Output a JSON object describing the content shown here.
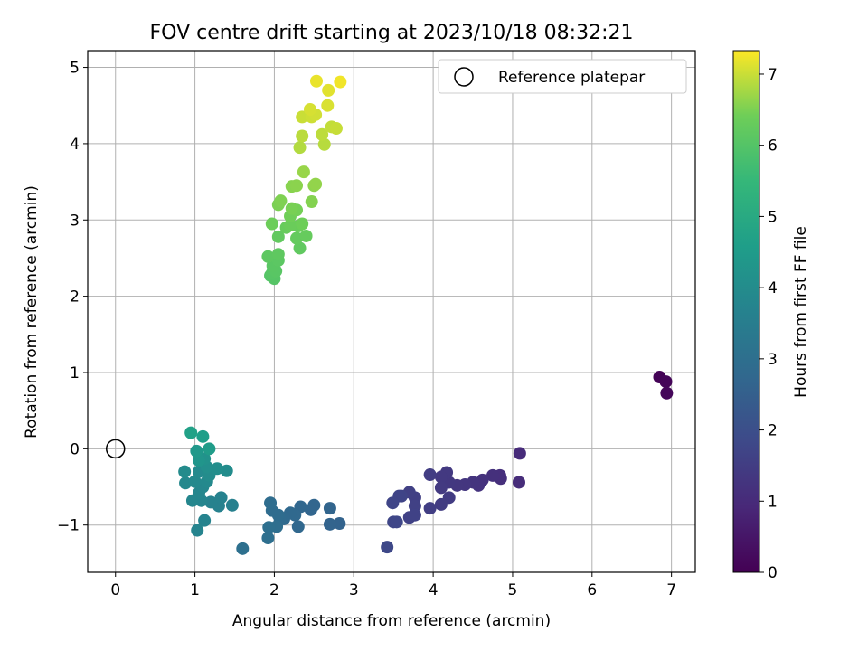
{
  "chart_data": {
    "type": "scatter",
    "title": "FOV centre drift starting at 2023/10/18 08:32:21",
    "xlabel": "Angular distance from reference (arcmin)",
    "ylabel": "Rotation from reference (arcmin)",
    "xlim": [
      -0.35,
      7.3
    ],
    "ylim": [
      -1.62,
      5.22
    ],
    "xticks": [
      0,
      1,
      2,
      3,
      4,
      5,
      6,
      7
    ],
    "yticks": [
      -1,
      0,
      1,
      2,
      3,
      4,
      5
    ],
    "grid": true,
    "legend": {
      "position": "upper right",
      "entries": [
        "Reference platepar"
      ]
    },
    "colorbar": {
      "label": "Hours from first FF file",
      "colormap": "viridis",
      "range": [
        0,
        7.33
      ],
      "ticks": [
        0,
        1,
        2,
        3,
        4,
        5,
        6,
        7
      ]
    },
    "reference_point": {
      "x": 0,
      "y": 0
    },
    "series": [
      {
        "points": [
          {
            "x": 6.85,
            "y": 0.94,
            "c": 0.05
          },
          {
            "x": 6.93,
            "y": 0.88,
            "c": 0.1
          },
          {
            "x": 6.94,
            "y": 0.73,
            "c": 0.15
          },
          {
            "x": 5.09,
            "y": -0.06,
            "c": 1.0
          },
          {
            "x": 5.08,
            "y": -0.44,
            "c": 1.05
          },
          {
            "x": 4.85,
            "y": -0.39,
            "c": 1.1
          },
          {
            "x": 4.84,
            "y": -0.35,
            "c": 1.12
          },
          {
            "x": 4.75,
            "y": -0.35,
            "c": 1.15
          },
          {
            "x": 4.62,
            "y": -0.41,
            "c": 1.2
          },
          {
            "x": 4.57,
            "y": -0.48,
            "c": 1.22
          },
          {
            "x": 4.5,
            "y": -0.44,
            "c": 1.25
          },
          {
            "x": 4.4,
            "y": -0.47,
            "c": 1.3
          },
          {
            "x": 4.3,
            "y": -0.48,
            "c": 1.32
          },
          {
            "x": 4.2,
            "y": -0.44,
            "c": 1.35
          },
          {
            "x": 4.17,
            "y": -0.31,
            "c": 1.38
          },
          {
            "x": 4.1,
            "y": -0.37,
            "c": 1.4
          },
          {
            "x": 4.1,
            "y": -0.51,
            "c": 1.42
          },
          {
            "x": 4.2,
            "y": -0.64,
            "c": 1.45
          },
          {
            "x": 4.1,
            "y": -0.73,
            "c": 1.48
          },
          {
            "x": 3.96,
            "y": -0.34,
            "c": 1.5
          },
          {
            "x": 3.96,
            "y": -0.78,
            "c": 1.52
          },
          {
            "x": 3.77,
            "y": -0.64,
            "c": 1.55
          },
          {
            "x": 3.7,
            "y": -0.57,
            "c": 1.58
          },
          {
            "x": 3.77,
            "y": -0.75,
            "c": 1.6
          },
          {
            "x": 3.7,
            "y": -0.9,
            "c": 1.62
          },
          {
            "x": 3.77,
            "y": -0.87,
            "c": 1.65
          },
          {
            "x": 3.6,
            "y": -0.62,
            "c": 1.68
          },
          {
            "x": 3.57,
            "y": -0.62,
            "c": 1.7
          },
          {
            "x": 3.49,
            "y": -0.71,
            "c": 1.72
          },
          {
            "x": 3.5,
            "y": -0.96,
            "c": 1.75
          },
          {
            "x": 3.54,
            "y": -0.96,
            "c": 1.78
          },
          {
            "x": 3.42,
            "y": -1.29,
            "c": 1.8
          },
          {
            "x": 2.82,
            "y": -0.98,
            "c": 2.6
          },
          {
            "x": 2.7,
            "y": -0.99,
            "c": 2.62
          },
          {
            "x": 2.7,
            "y": -0.78,
            "c": 2.65
          },
          {
            "x": 2.5,
            "y": -0.74,
            "c": 2.68
          },
          {
            "x": 2.46,
            "y": -0.8,
            "c": 2.7
          },
          {
            "x": 2.33,
            "y": -0.76,
            "c": 2.72
          },
          {
            "x": 2.3,
            "y": -1.02,
            "c": 2.75
          },
          {
            "x": 2.26,
            "y": -0.87,
            "c": 2.78
          },
          {
            "x": 2.2,
            "y": -0.84,
            "c": 2.8
          },
          {
            "x": 2.12,
            "y": -0.92,
            "c": 2.82
          },
          {
            "x": 2.07,
            "y": -0.92,
            "c": 2.85
          },
          {
            "x": 2.05,
            "y": -0.87,
            "c": 2.88
          },
          {
            "x": 1.97,
            "y": -0.81,
            "c": 2.9
          },
          {
            "x": 1.95,
            "y": -0.71,
            "c": 2.92
          },
          {
            "x": 2.03,
            "y": -1.02,
            "c": 2.95
          },
          {
            "x": 1.93,
            "y": -1.03,
            "c": 2.98
          },
          {
            "x": 1.92,
            "y": -1.17,
            "c": 3.0
          },
          {
            "x": 1.6,
            "y": -1.31,
            "c": 3.02
          },
          {
            "x": 1.47,
            "y": -0.74,
            "c": 3.6
          },
          {
            "x": 1.3,
            "y": -0.75,
            "c": 3.62
          },
          {
            "x": 1.33,
            "y": -0.64,
            "c": 3.65
          },
          {
            "x": 1.2,
            "y": -0.7,
            "c": 3.68
          },
          {
            "x": 1.12,
            "y": -0.94,
            "c": 3.7
          },
          {
            "x": 1.03,
            "y": -1.07,
            "c": 3.72
          },
          {
            "x": 1.08,
            "y": -0.68,
            "c": 3.75
          },
          {
            "x": 0.97,
            "y": -0.68,
            "c": 3.78
          },
          {
            "x": 1.05,
            "y": -0.58,
            "c": 3.8
          },
          {
            "x": 1.1,
            "y": -0.5,
            "c": 3.82
          },
          {
            "x": 0.88,
            "y": -0.45,
            "c": 3.85
          },
          {
            "x": 1.0,
            "y": -0.43,
            "c": 3.88
          },
          {
            "x": 1.15,
            "y": -0.43,
            "c": 3.9
          },
          {
            "x": 1.05,
            "y": -0.3,
            "c": 3.92
          },
          {
            "x": 0.87,
            "y": -0.3,
            "c": 3.95
          },
          {
            "x": 1.18,
            "y": -0.35,
            "c": 3.98
          },
          {
            "x": 1.4,
            "y": -0.29,
            "c": 4.0
          },
          {
            "x": 1.28,
            "y": -0.26,
            "c": 4.05
          },
          {
            "x": 1.15,
            "y": -0.24,
            "c": 4.1
          },
          {
            "x": 1.12,
            "y": -0.13,
            "c": 4.2
          },
          {
            "x": 1.05,
            "y": -0.15,
            "c": 4.3
          },
          {
            "x": 1.02,
            "y": -0.03,
            "c": 4.4
          },
          {
            "x": 1.18,
            "y": 0.0,
            "c": 4.5
          },
          {
            "x": 1.1,
            "y": 0.16,
            "c": 4.6
          },
          {
            "x": 0.95,
            "y": 0.21,
            "c": 4.7
          },
          {
            "x": 1.95,
            "y": 2.27,
            "c": 6.0
          },
          {
            "x": 2.0,
            "y": 2.23,
            "c": 6.02
          },
          {
            "x": 1.97,
            "y": 2.3,
            "c": 6.05
          },
          {
            "x": 2.02,
            "y": 2.33,
            "c": 6.08
          },
          {
            "x": 1.98,
            "y": 2.4,
            "c": 6.1
          },
          {
            "x": 2.05,
            "y": 2.47,
            "c": 6.12
          },
          {
            "x": 1.92,
            "y": 2.52,
            "c": 6.15
          },
          {
            "x": 2.05,
            "y": 2.55,
            "c": 6.18
          },
          {
            "x": 2.32,
            "y": 2.63,
            "c": 6.2
          },
          {
            "x": 2.05,
            "y": 2.78,
            "c": 6.22
          },
          {
            "x": 2.28,
            "y": 2.76,
            "c": 6.25
          },
          {
            "x": 2.4,
            "y": 2.79,
            "c": 6.28
          },
          {
            "x": 2.15,
            "y": 2.9,
            "c": 6.3
          },
          {
            "x": 2.3,
            "y": 2.92,
            "c": 6.32
          },
          {
            "x": 2.2,
            "y": 2.93,
            "c": 6.35
          },
          {
            "x": 1.97,
            "y": 2.95,
            "c": 6.38
          },
          {
            "x": 2.35,
            "y": 2.95,
            "c": 6.4
          },
          {
            "x": 2.2,
            "y": 3.05,
            "c": 6.42
          },
          {
            "x": 2.28,
            "y": 3.13,
            "c": 6.45
          },
          {
            "x": 2.22,
            "y": 3.15,
            "c": 6.48
          },
          {
            "x": 2.05,
            "y": 3.2,
            "c": 6.5
          },
          {
            "x": 2.08,
            "y": 3.25,
            "c": 6.52
          },
          {
            "x": 2.47,
            "y": 3.24,
            "c": 6.55
          },
          {
            "x": 2.22,
            "y": 3.44,
            "c": 6.58
          },
          {
            "x": 2.28,
            "y": 3.45,
            "c": 6.6
          },
          {
            "x": 2.5,
            "y": 3.45,
            "c": 6.62
          },
          {
            "x": 2.52,
            "y": 3.47,
            "c": 6.65
          },
          {
            "x": 2.37,
            "y": 3.63,
            "c": 6.68
          },
          {
            "x": 2.32,
            "y": 3.95,
            "c": 6.85
          },
          {
            "x": 2.63,
            "y": 3.99,
            "c": 6.88
          },
          {
            "x": 2.35,
            "y": 4.1,
            "c": 6.9
          },
          {
            "x": 2.6,
            "y": 4.12,
            "c": 6.92
          },
          {
            "x": 2.72,
            "y": 4.22,
            "c": 6.95
          },
          {
            "x": 2.78,
            "y": 4.2,
            "c": 6.98
          },
          {
            "x": 2.35,
            "y": 4.35,
            "c": 7.0
          },
          {
            "x": 2.47,
            "y": 4.35,
            "c": 7.02
          },
          {
            "x": 2.52,
            "y": 4.38,
            "c": 7.05
          },
          {
            "x": 2.45,
            "y": 4.45,
            "c": 7.08
          },
          {
            "x": 2.67,
            "y": 4.5,
            "c": 7.1
          },
          {
            "x": 2.68,
            "y": 4.7,
            "c": 7.15
          },
          {
            "x": 2.53,
            "y": 4.82,
            "c": 7.2
          },
          {
            "x": 2.83,
            "y": 4.81,
            "c": 7.25
          }
        ]
      }
    ]
  }
}
